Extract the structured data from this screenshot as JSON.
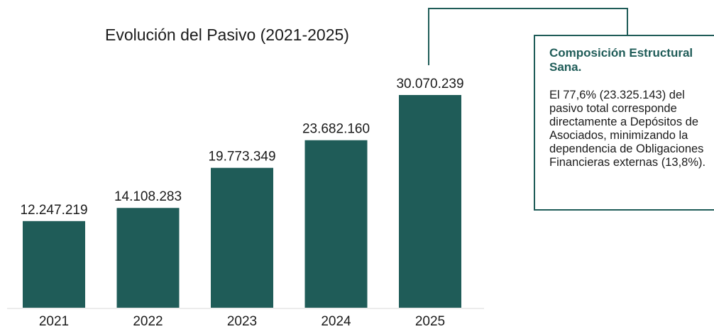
{
  "colors": {
    "bar": "#1f5c58",
    "accent": "#1f5c58",
    "text": "#1b1b1b"
  },
  "chart_data": {
    "type": "bar",
    "title": "Evolución del Pasivo (2021-2025)",
    "categories": [
      "2021",
      "2022",
      "2023",
      "2024",
      "2025"
    ],
    "values": [
      12247219,
      14108283,
      19773349,
      23682160,
      30070239
    ],
    "value_labels": [
      "12.247.219",
      "14.108.283",
      "19.773.349",
      "23.682.160",
      "30.070.239"
    ],
    "xlabel": "",
    "ylabel": "",
    "ylim": [
      0,
      30070239
    ],
    "grid": false,
    "legend": "none"
  },
  "callout": {
    "heading": "Composición Estructural Sana.",
    "body": "El 77,6% (23.325.143) del pasivo total corresponde directamente a Depósitos de Asociados, minimizando la dependencia de Obligaciones Financieras externas (13,8%)."
  }
}
